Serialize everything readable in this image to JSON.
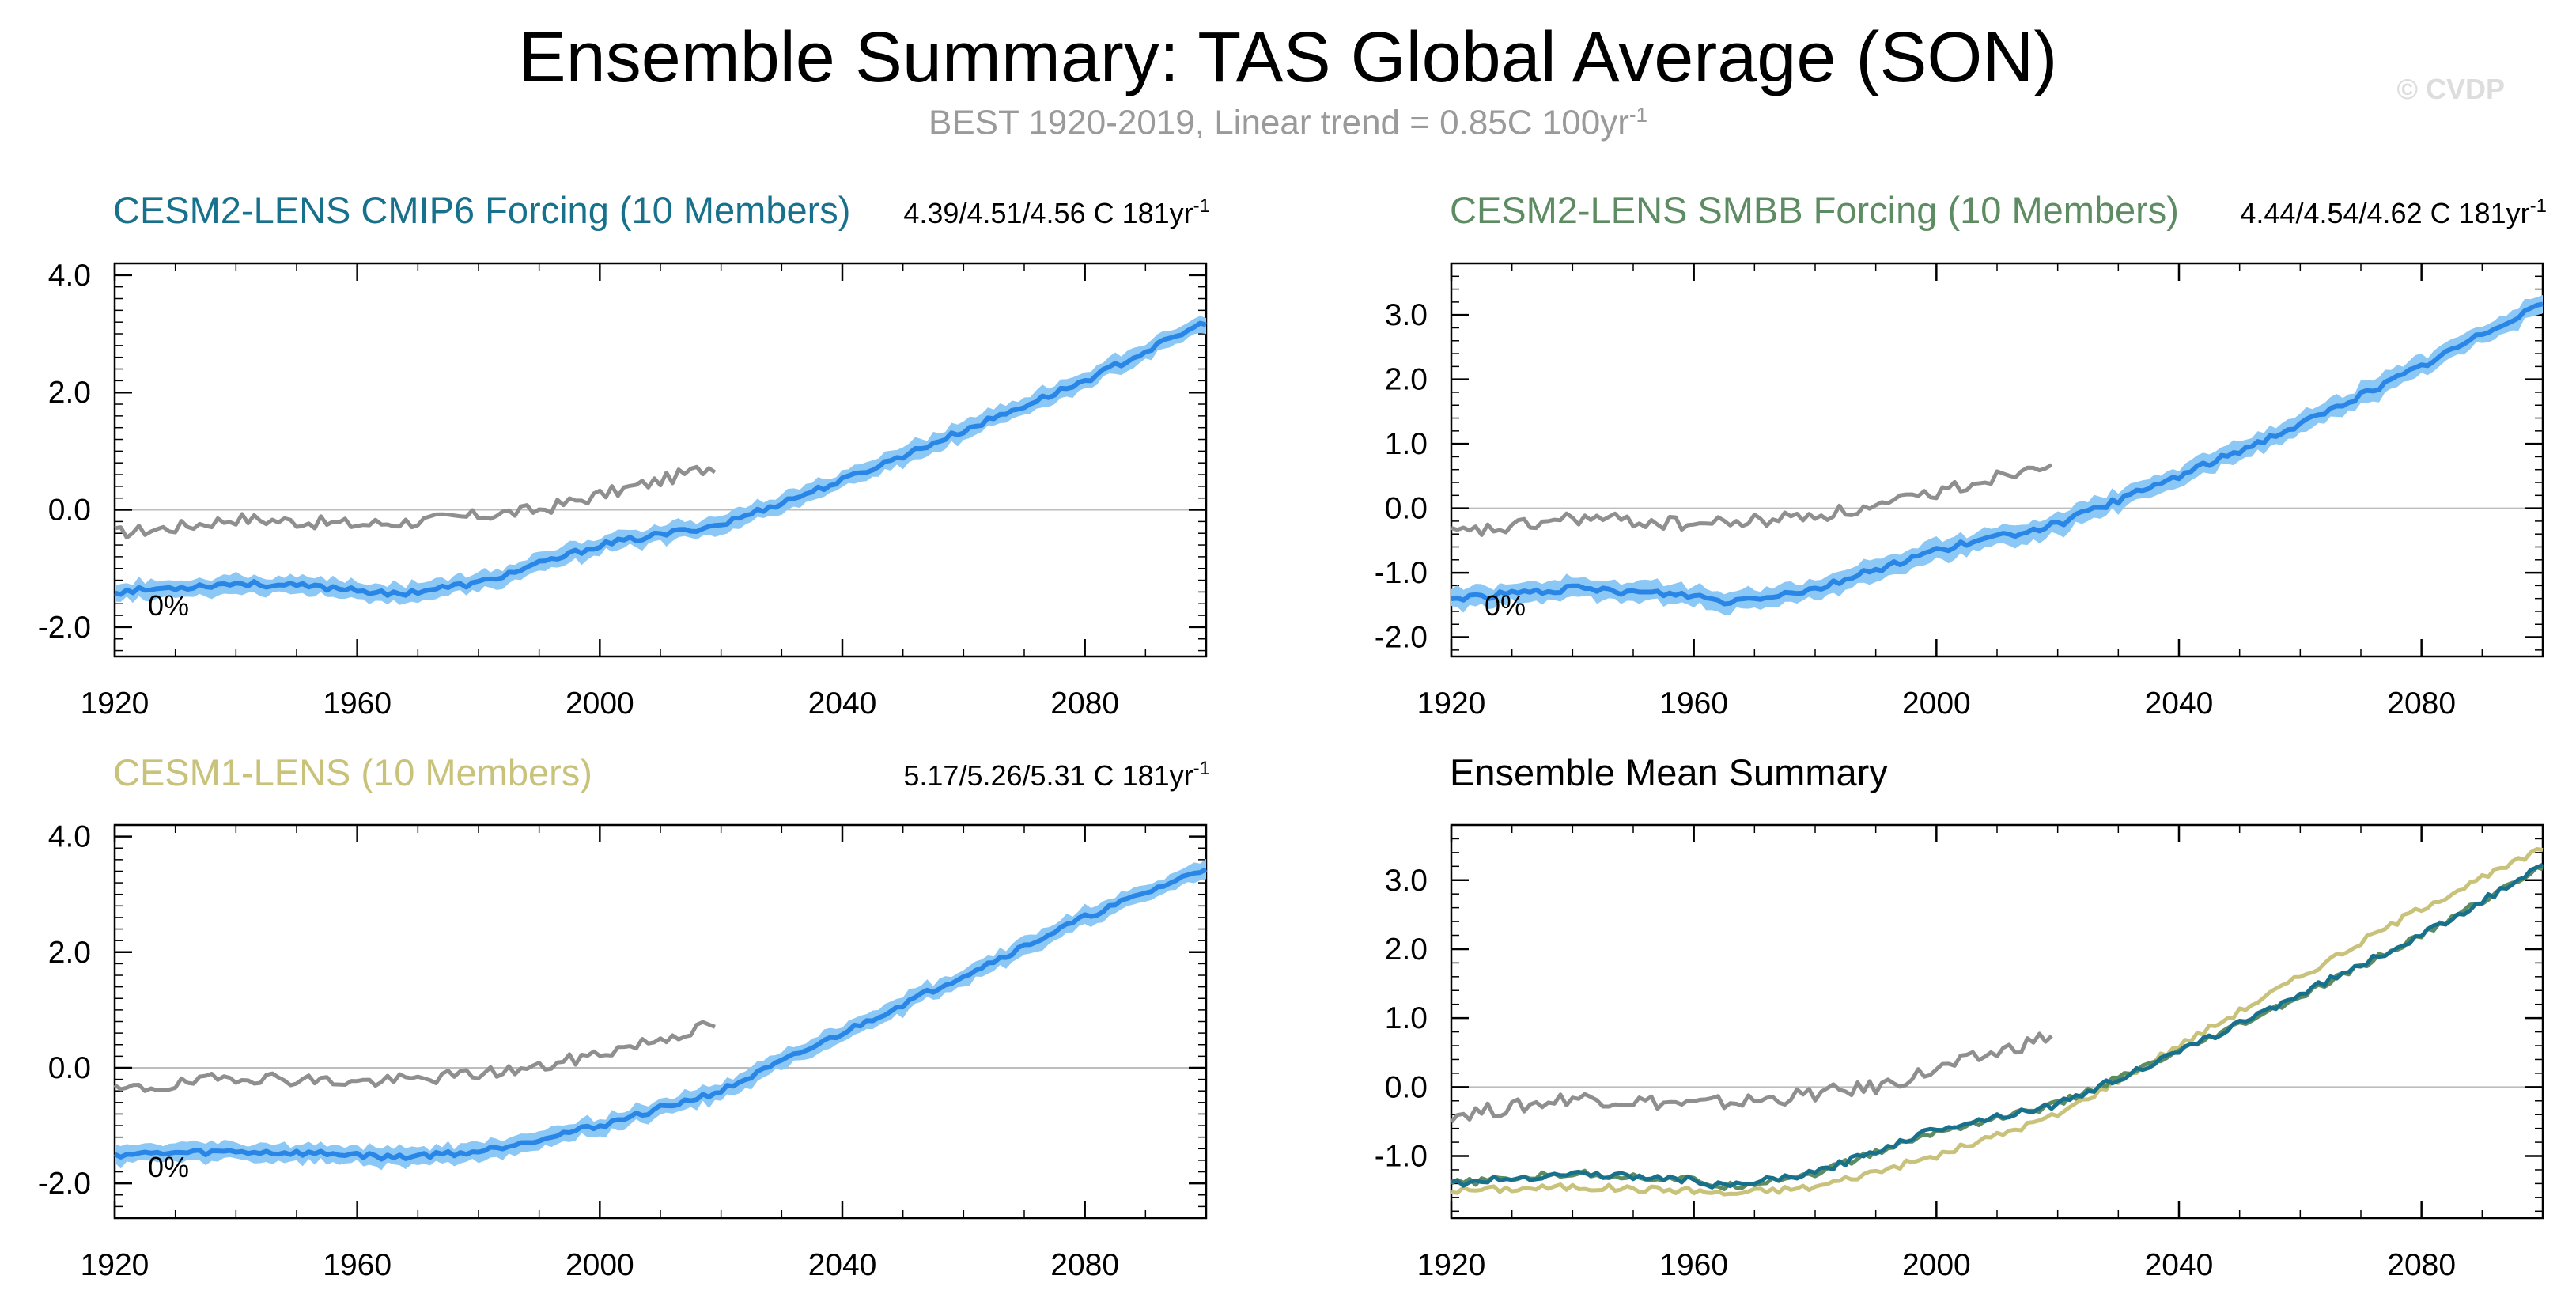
{
  "header": {
    "title": "Ensemble Summary: TAS Global Average (SON)",
    "subtitle_main": "BEST 1920-2019, Linear trend = 0.85C 100yr",
    "subtitle_sup": "-1",
    "copyright": "© CVDP"
  },
  "colors": {
    "obs": "#8f8f8f",
    "ensemble_mean": "#2a86e6",
    "ensemble_spread": "#8cc8f5",
    "cesm2_cmip6": "#17708c",
    "cesm2_smbb": "#5e8c62",
    "cesm1": "#c8c27a"
  },
  "chart_data": [
    {
      "id": "cesm2-cmip6",
      "type": "line",
      "title": "CESM2-LENS CMIP6 Forcing (10 Members)",
      "title_color": "#17708c",
      "stats": "4.39/4.51/4.56 C 181yr",
      "stats_sup": "-1",
      "percent_label": "0%",
      "xlim": [
        1920,
        2100
      ],
      "ylim": [
        -2.5,
        4.2
      ],
      "xticks": [
        1920,
        1960,
        2000,
        2040,
        2080
      ],
      "yticks": [
        4.0,
        2.0,
        0.0,
        -2.0
      ],
      "ytick_labels": [
        "4.0",
        "2.0",
        "0.0",
        "-2.0"
      ],
      "obs_x": [
        1920,
        1930,
        1940,
        1950,
        1960,
        1970,
        1980,
        1990,
        2000,
        2010,
        2019
      ],
      "obs_y": [
        -0.4,
        -0.3,
        -0.15,
        -0.2,
        -0.25,
        -0.2,
        -0.1,
        0.0,
        0.25,
        0.5,
        0.75
      ],
      "mean_x": [
        1920,
        1940,
        1960,
        1965,
        1980,
        2000,
        2020,
        2040,
        2060,
        2080,
        2100
      ],
      "mean_y": [
        -1.4,
        -1.25,
        -1.35,
        -1.45,
        -1.25,
        -0.6,
        -0.25,
        0.5,
        1.35,
        2.2,
        3.2
      ],
      "spread": 0.18
    },
    {
      "id": "cesm2-smbb",
      "type": "line",
      "title": "CESM2-LENS SMBB Forcing (10 Members)",
      "title_color": "#5e8c62",
      "stats": "4.44/4.54/4.62 C 181yr",
      "stats_sup": "-1",
      "percent_label": "0%",
      "xlim": [
        1920,
        2100
      ],
      "ylim": [
        -2.3,
        3.8
      ],
      "xticks": [
        1920,
        1960,
        2000,
        2040,
        2080
      ],
      "yticks": [
        3.0,
        2.0,
        1.0,
        0.0,
        -1.0,
        -2.0
      ],
      "ytick_labels": [
        "3.0",
        "2.0",
        "1.0",
        "0.0",
        "-1.0",
        "-2.0"
      ],
      "obs_x": [
        1920,
        1930,
        1940,
        1950,
        1960,
        1970,
        1980,
        1990,
        2000,
        2010,
        2019
      ],
      "obs_y": [
        -0.4,
        -0.3,
        -0.15,
        -0.2,
        -0.25,
        -0.2,
        -0.1,
        0.0,
        0.25,
        0.5,
        0.75
      ],
      "mean_x": [
        1920,
        1940,
        1960,
        1965,
        1980,
        2000,
        2020,
        2040,
        2060,
        2080,
        2100
      ],
      "mean_y": [
        -1.4,
        -1.25,
        -1.35,
        -1.45,
        -1.25,
        -0.65,
        -0.25,
        0.5,
        1.3,
        2.2,
        3.2
      ],
      "spread": 0.18
    },
    {
      "id": "cesm1",
      "type": "line",
      "title": "CESM1-LENS (10 Members)",
      "title_color": "#c8c27a",
      "stats": "5.17/5.26/5.31 C 181yr",
      "stats_sup": "-1",
      "percent_label": "0%",
      "xlim": [
        1920,
        2100
      ],
      "ylim": [
        -2.6,
        4.2
      ],
      "xticks": [
        1920,
        1960,
        2000,
        2040,
        2080
      ],
      "yticks": [
        4.0,
        2.0,
        0.0,
        -2.0
      ],
      "ytick_labels": [
        "4.0",
        "2.0",
        "0.0",
        "-2.0"
      ],
      "obs_x": [
        1920,
        1930,
        1940,
        1950,
        1960,
        1970,
        1980,
        1990,
        2000,
        2010,
        2019
      ],
      "obs_y": [
        -0.4,
        -0.3,
        -0.15,
        -0.2,
        -0.25,
        -0.2,
        -0.1,
        0.0,
        0.25,
        0.5,
        0.75
      ],
      "mean_x": [
        1920,
        1940,
        1960,
        1965,
        1980,
        2000,
        2020,
        2040,
        2060,
        2080,
        2100
      ],
      "mean_y": [
        -1.5,
        -1.45,
        -1.5,
        -1.55,
        -1.45,
        -1.0,
        -0.4,
        0.6,
        1.6,
        2.6,
        3.45
      ],
      "spread": 0.18
    },
    {
      "id": "ensemble-mean-summary",
      "type": "line",
      "title": "Ensemble Mean Summary",
      "title_color": "#000000",
      "stats": "",
      "stats_sup": "",
      "percent_label": "",
      "xlim": [
        1920,
        2100
      ],
      "ylim": [
        -1.9,
        3.8
      ],
      "xticks": [
        1920,
        1960,
        2000,
        2040,
        2080
      ],
      "yticks": [
        3.0,
        2.0,
        1.0,
        0.0,
        -1.0
      ],
      "ytick_labels": [
        "3.0",
        "2.0",
        "1.0",
        "0.0",
        "-1.0"
      ],
      "obs_x": [
        1920,
        1930,
        1940,
        1950,
        1960,
        1970,
        1980,
        1990,
        2000,
        2010,
        2019
      ],
      "obs_y": [
        -0.4,
        -0.3,
        -0.15,
        -0.2,
        -0.25,
        -0.2,
        -0.1,
        0.0,
        0.25,
        0.5,
        0.75
      ],
      "series": [
        {
          "name": "CESM1-LENS",
          "color": "#c8c27a",
          "x": [
            1920,
            1940,
            1960,
            1965,
            1980,
            2000,
            2020,
            2040,
            2060,
            2080,
            2100
          ],
          "y": [
            -1.5,
            -1.45,
            -1.5,
            -1.55,
            -1.45,
            -1.0,
            -0.4,
            0.6,
            1.6,
            2.6,
            3.45
          ]
        },
        {
          "name": "CESM2-LENS SMBB Forcing",
          "color": "#5e8c62",
          "x": [
            1920,
            1940,
            1960,
            1965,
            1980,
            2000,
            2020,
            2040,
            2060,
            2080,
            2100
          ],
          "y": [
            -1.4,
            -1.25,
            -1.35,
            -1.45,
            -1.25,
            -0.65,
            -0.25,
            0.5,
            1.3,
            2.2,
            3.2
          ]
        },
        {
          "name": "CESM2-LENS CMIP6 Forcing",
          "color": "#17708c",
          "x": [
            1920,
            1940,
            1960,
            1965,
            1980,
            2000,
            2020,
            2040,
            2060,
            2080,
            2100
          ],
          "y": [
            -1.4,
            -1.25,
            -1.35,
            -1.45,
            -1.25,
            -0.6,
            -0.25,
            0.5,
            1.35,
            2.2,
            3.2
          ]
        }
      ]
    }
  ]
}
